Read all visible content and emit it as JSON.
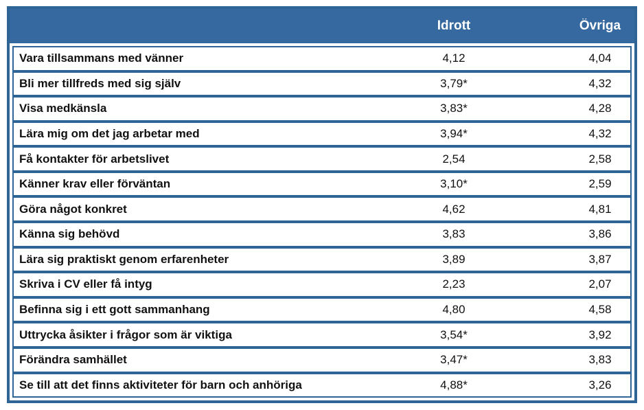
{
  "table": {
    "columns": [
      "Idrott",
      "Övriga"
    ],
    "rows": [
      {
        "label": "Vara tillsammans med vänner",
        "idrott": "4,12",
        "ovriga": "4,04"
      },
      {
        "label": "Bli mer tillfreds med sig själv",
        "idrott": "3,79*",
        "ovriga": "4,32"
      },
      {
        "label": "Visa medkänsla",
        "idrott": "3,83*",
        "ovriga": "4,28"
      },
      {
        "label": "Lära mig om det jag arbetar med",
        "idrott": "3,94*",
        "ovriga": "4,32"
      },
      {
        "label": "Få kontakter för arbetslivet",
        "idrott": "2,54",
        "ovriga": "2,58"
      },
      {
        "label": "Känner krav eller förväntan",
        "idrott": "3,10*",
        "ovriga": "2,59"
      },
      {
        "label": "Göra något konkret",
        "idrott": "4,62",
        "ovriga": "4,81"
      },
      {
        "label": "Känna sig behövd",
        "idrott": "3,83",
        "ovriga": "3,86"
      },
      {
        "label": "Lära sig praktiskt genom erfarenheter",
        "idrott": "3,89",
        "ovriga": "3,87"
      },
      {
        "label": "Skriva i CV eller få intyg",
        "idrott": "2,23",
        "ovriga": "2,07"
      },
      {
        "label": "Befinna sig i ett gott sammanhang",
        "idrott": "4,80",
        "ovriga": "4,58"
      },
      {
        "label": "Uttrycka åsikter i frågor som är viktiga",
        "idrott": "3,54*",
        "ovriga": "3,92"
      },
      {
        "label": "Förändra samhället",
        "idrott": "3,47*",
        "ovriga": "3,83"
      },
      {
        "label": "Se till att det finns aktiviteter för barn och anhöriga",
        "idrott": "4,88*",
        "ovriga": "3,26"
      }
    ]
  },
  "colors": {
    "header_background": "#35699F",
    "border": "#2F6496",
    "header_text": "#FFFFFF",
    "body_text": "#111111"
  }
}
